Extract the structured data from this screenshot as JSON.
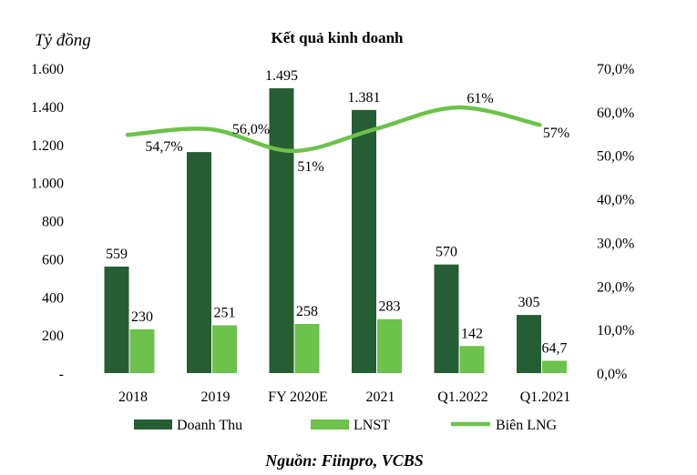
{
  "chart_data": {
    "type": "bar",
    "title": "Kết quả kinh doanh",
    "ylabel": "Tỷ đồng",
    "source": "Nguồn: Fiinpro, VCBS",
    "categories": [
      "2018",
      "2019",
      "FY  2020E",
      "2021",
      "Q1.2022",
      "Q1.2021"
    ],
    "ylim": [
      0,
      1600
    ],
    "y_ticks": [
      "-",
      "200",
      "400",
      "600",
      "800",
      "1.000",
      "1.200",
      "1.400",
      "1.600"
    ],
    "y2lim": [
      0,
      70
    ],
    "y2_ticks": [
      "0,0%",
      "10,0%",
      "20,0%",
      "30,0%",
      "40,0%",
      "50,0%",
      "60,0%",
      "70,0%"
    ],
    "grid": false,
    "legend_position": "bottom",
    "colors": {
      "doanh_thu": "#265e33",
      "lnst": "#6cc24a",
      "bien_lng": "#6cc24a"
    },
    "series": [
      {
        "name": "Doanh Thu",
        "type": "bar",
        "axis": "left",
        "values": [
          559,
          1160,
          1495,
          1381,
          570,
          305
        ],
        "labels": [
          "559",
          "",
          "1.495",
          "1.381",
          "570",
          "305"
        ]
      },
      {
        "name": "LNST",
        "type": "bar",
        "axis": "left",
        "values": [
          230,
          251,
          258,
          283,
          142,
          64.7
        ],
        "labels": [
          "230",
          "251",
          "258",
          "283",
          "142",
          "64,7"
        ]
      },
      {
        "name": "Biên LNG",
        "type": "line",
        "axis": "right",
        "values": [
          54.7,
          56.0,
          51,
          56,
          61,
          57
        ],
        "labels": [
          "54,7%",
          "56,0%",
          "51%",
          "",
          "61%",
          "57%"
        ]
      }
    ]
  }
}
